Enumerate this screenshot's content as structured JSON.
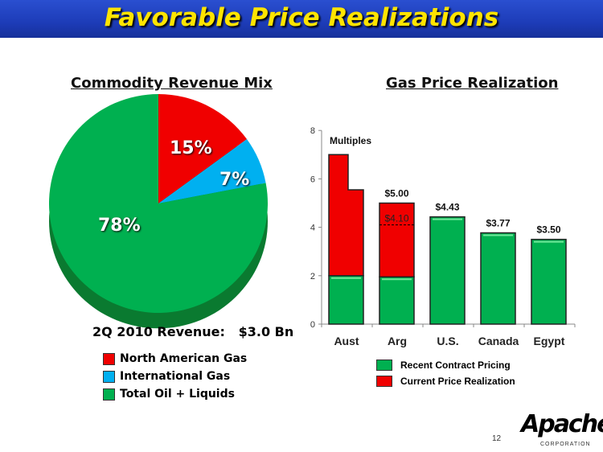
{
  "title": "Favorable Price Realizations",
  "left": {
    "heading": "Commodity Revenue Mix",
    "revenue_label": "2Q 2010 Revenue:",
    "revenue_value": "$3.0 Bn",
    "legend": [
      "North American Gas",
      "International Gas",
      "Total Oil + Liquids"
    ]
  },
  "right": {
    "heading": "Gas Price Realization",
    "legend": [
      "Recent Contract Pricing",
      "Current Price Realization"
    ]
  },
  "colors": {
    "red": "#f00000",
    "blue": "#00b0f0",
    "green": "#00b050",
    "gold": "#ffe400"
  },
  "page_number": "12",
  "logo_text": "Apache",
  "logo_sub": "CORPORATION",
  "chart_data": [
    {
      "type": "pie",
      "title": "Commodity Revenue Mix",
      "labels": [
        "North American Gas",
        "International Gas",
        "Total Oil + Liquids"
      ],
      "values": [
        15,
        7,
        78
      ],
      "data_labels": [
        "15%",
        "7%",
        "78%"
      ]
    },
    {
      "type": "bar",
      "title": "Gas Price Realization",
      "categories": [
        "Aust",
        "Arg",
        "U.S.",
        "Canada",
        "Egypt"
      ],
      "ylim": [
        0,
        8
      ],
      "yticks": [
        "0",
        "2",
        "4",
        "6",
        "8"
      ],
      "annotation": "Multiples",
      "series": [
        {
          "name": "Recent Contract Pricing",
          "values": [
            2.0,
            1.95,
            4.43,
            3.77,
            3.5
          ]
        },
        {
          "name": "Current Price Realization",
          "values": [
            5.0,
            3.05,
            0,
            0,
            0
          ]
        }
      ],
      "aust_step": {
        "high": 7.0,
        "low": 5.55
      },
      "arg_reference": 4.1,
      "data_labels": [
        "",
        "$5.00",
        "$4.43",
        "$3.77",
        "$3.50"
      ],
      "arg_inner_label": "$4.10"
    }
  ]
}
